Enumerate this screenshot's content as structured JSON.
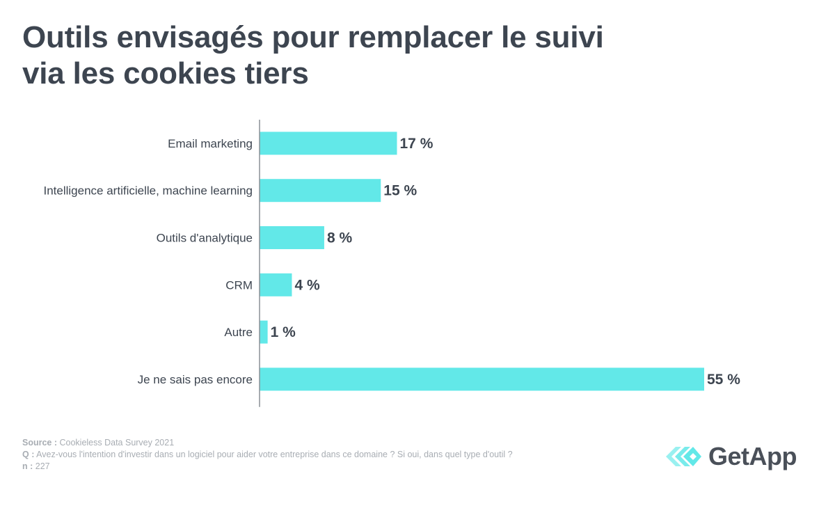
{
  "title_lines": [
    "Outils envisagés pour remplacer le suivi",
    "via les cookies tiers"
  ],
  "chart_data": {
    "type": "bar",
    "orientation": "horizontal",
    "title": "Outils envisagés pour remplacer le suivi via les cookies tiers",
    "categories": [
      "Email marketing",
      "Intelligence artificielle, machine learning",
      "Outils d'analytique",
      "CRM",
      "Autre",
      "Je ne sais pas encore"
    ],
    "values": [
      17,
      15,
      8,
      4,
      1,
      55
    ],
    "value_labels": [
      "17 %",
      "15 %",
      "8 %",
      "4 %",
      "1 %",
      "55 %"
    ],
    "unit": "%",
    "xlabel": "",
    "ylabel": "",
    "xlim": [
      0,
      55
    ],
    "grid": false,
    "bar_color": "#62e8e8"
  },
  "footer": {
    "source_label": "Source :",
    "source_text": " Cookieless Data Survey 2021",
    "question_label": "Q :",
    "question_text": " Avez-vous l'intention d'investir dans un logiciel pour aider votre entreprise dans ce domaine ? Si oui, dans quel type d'outil ?",
    "n_label": "n :",
    "n_text": " 227"
  },
  "brand": {
    "name": "GetApp",
    "logo_icon": "getapp-chevrons-icon",
    "color": "#62e8e8",
    "text_color": "#4a5059"
  },
  "colors": {
    "title": "#3d4550",
    "bar": "#62e8e8",
    "axis": "#8a8f96",
    "footer": "#a8adb3"
  }
}
